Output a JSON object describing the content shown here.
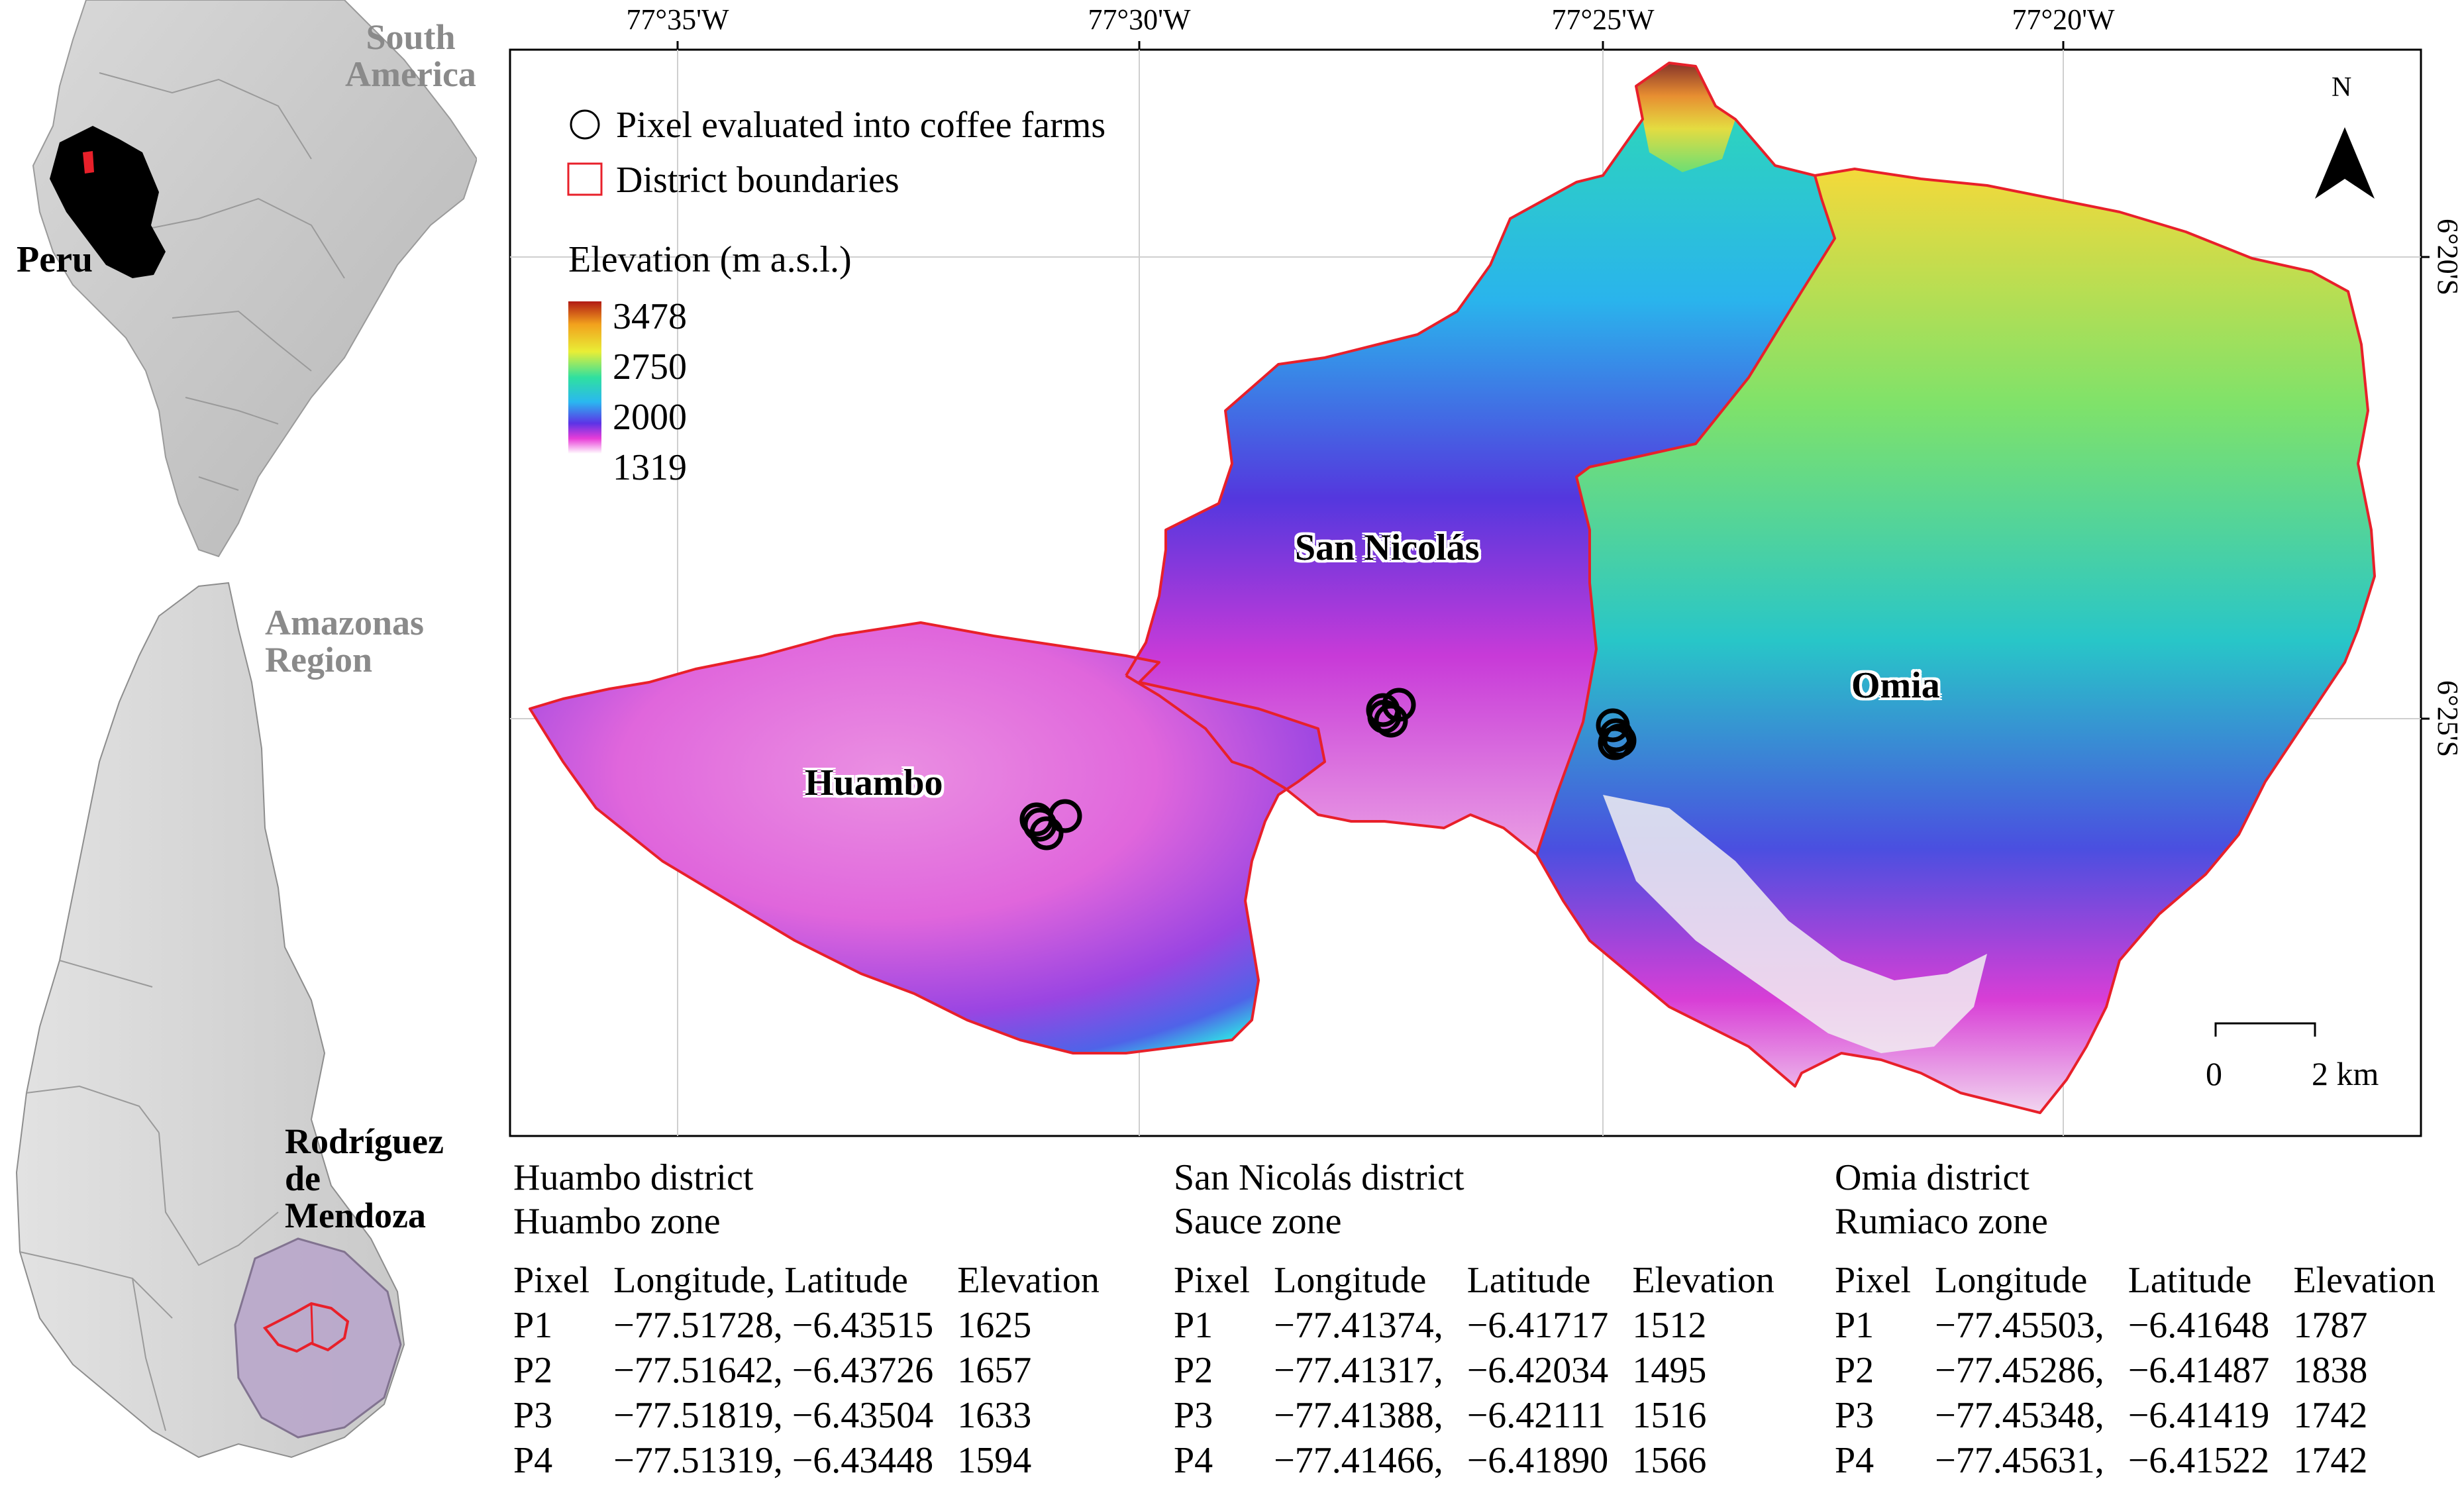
{
  "inset_south_america": {
    "continent_label_line1": "South",
    "continent_label_line2": "America",
    "country_label": "Peru"
  },
  "inset_amazonas": {
    "region_label_line1": "Amazonas",
    "region_label_line2": "Region",
    "province_label_line1": "Rodríguez",
    "province_label_line2": "de",
    "province_label_line3": "Mendoza"
  },
  "main_map": {
    "top_axis_labels": [
      "77°35'W",
      "77°30'W",
      "77°25'W",
      "77°20'W"
    ],
    "right_axis_labels": [
      "6°20'S",
      "6°25'S"
    ],
    "north_arrow_label": "N",
    "legend": {
      "point_label": "Pixel evaluated into coffee farms",
      "boundary_label": "District boundaries",
      "elevation_title": "Elevation (m a.s.l.)",
      "elevation_values": [
        "3478",
        "2750",
        "2000",
        "1319"
      ]
    },
    "district_labels": [
      "San Nicolás",
      "Huambo",
      "Omia"
    ],
    "scale_bar": {
      "start": "0",
      "end": "2 km"
    }
  },
  "colors": {
    "district_boundary": "#e8202a",
    "inset_highlight": "#e8202a",
    "gray_label": "#8a8a8a"
  },
  "tables": [
    {
      "district": "Huambo district",
      "zone": "Huambo zone",
      "headers": [
        "Pixel",
        "Longitude, Latitude",
        "Elevation"
      ],
      "rows": [
        [
          "P1",
          "−77.51728, −6.43515",
          "1625"
        ],
        [
          "P2",
          "−77.51642, −6.43726",
          "1657"
        ],
        [
          "P3",
          "−77.51819, −6.43504",
          "1633"
        ],
        [
          "P4",
          "−77.51319, −6.43448",
          "1594"
        ]
      ]
    },
    {
      "district": "San Nicolás district",
      "zone": "Sauce zone",
      "headers": [
        "Pixel",
        "Longitude",
        "Latitude",
        "Elevation"
      ],
      "rows": [
        [
          "P1",
          "−77.41374,",
          "−6.41717",
          "1512"
        ],
        [
          "P2",
          "−77.41317,",
          "−6.42034",
          "1495"
        ],
        [
          "P3",
          "−77.41388,",
          "−6.42111",
          "1516"
        ],
        [
          "P4",
          "−77.41466,",
          "−6.41890",
          "1566"
        ]
      ]
    },
    {
      "district": "Omia district",
      "zone": "Rumiaco zone",
      "headers": [
        "Pixel",
        "Longitude",
        "Latitude",
        "Elevation"
      ],
      "rows": [
        [
          "P1",
          "−77.45503,",
          "−6.41648",
          "1787"
        ],
        [
          "P2",
          "−77.45286,",
          "−6.41487",
          "1838"
        ],
        [
          "P3",
          "−77.45348,",
          "−6.41419",
          "1742"
        ],
        [
          "P4",
          "−77.45631,",
          "−6.41522",
          "1742"
        ]
      ]
    }
  ]
}
